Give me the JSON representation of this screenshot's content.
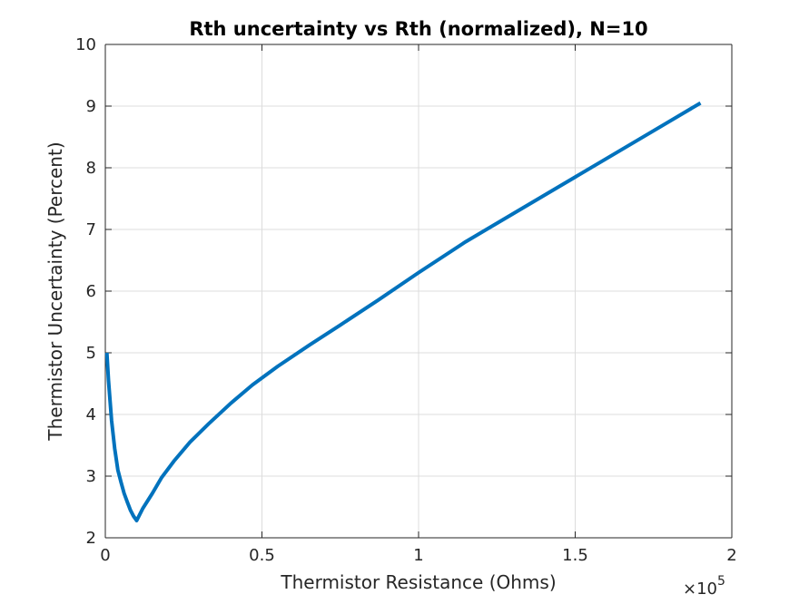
{
  "chart_data": {
    "type": "line",
    "title": "Rth uncertainty vs Rth (normalized), N=10",
    "xlabel": "Thermistor Resistance (Ohms)",
    "ylabel": "Thermistor Uncertainty (Percent)",
    "xlim": [
      0,
      200000
    ],
    "ylim": [
      2,
      10
    ],
    "x_tick_values": [
      0,
      50000,
      100000,
      150000,
      200000
    ],
    "x_tick_labels": [
      "0",
      "0.5",
      "1",
      "1.5",
      "2"
    ],
    "x_exponent_label": "×10",
    "x_exponent_power": "5",
    "y_tick_values": [
      2,
      3,
      4,
      5,
      6,
      7,
      8,
      9,
      10
    ],
    "y_tick_labels": [
      "2",
      "3",
      "4",
      "5",
      "6",
      "7",
      "8",
      "9",
      "10"
    ],
    "grid": true,
    "series": [
      {
        "color": "#0072bd",
        "x": [
          500,
          1000,
          2000,
          3000,
          4000,
          5000,
          6000,
          7000,
          8000,
          9000,
          10000,
          12000,
          15000,
          18000,
          22000,
          27000,
          33000,
          40000,
          47000,
          55000,
          65000,
          75000,
          87000,
          100000,
          115000,
          130000,
          145000,
          160000,
          175000,
          190000
        ],
        "y": [
          5.0,
          4.55,
          3.9,
          3.45,
          3.1,
          2.9,
          2.72,
          2.58,
          2.45,
          2.35,
          2.28,
          2.48,
          2.72,
          2.98,
          3.25,
          3.55,
          3.85,
          4.18,
          4.48,
          4.78,
          5.12,
          5.45,
          5.85,
          6.3,
          6.8,
          7.25,
          7.7,
          8.15,
          8.6,
          9.05
        ]
      }
    ]
  }
}
